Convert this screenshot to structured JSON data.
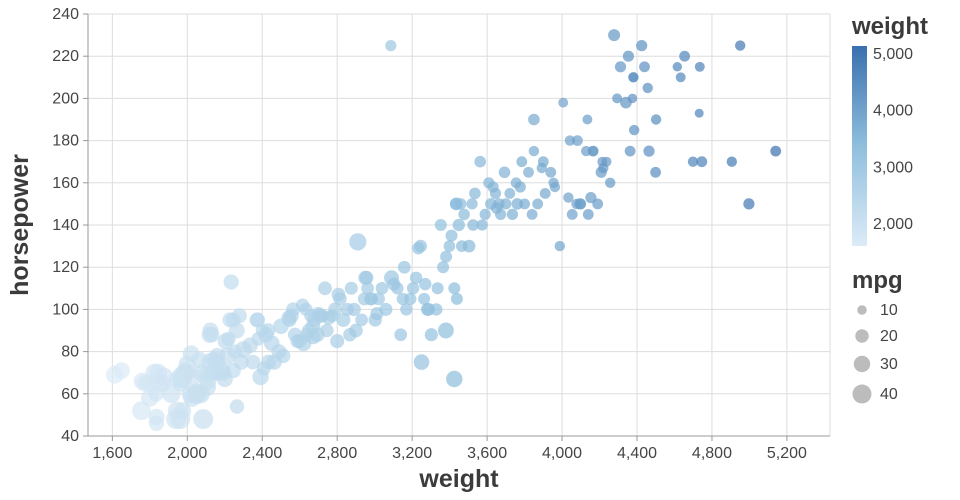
{
  "chart_data": {
    "type": "scatter",
    "title": "",
    "xlabel": "weight",
    "ylabel": "horsepower",
    "x_domain": [
      1470,
      5430
    ],
    "y_domain": [
      40,
      240
    ],
    "x_ticks": [
      1600,
      2000,
      2400,
      2800,
      3200,
      3600,
      4000,
      4400,
      4800,
      5200
    ],
    "x_tick_labels": [
      "1,600",
      "2,000",
      "2,400",
      "2,800",
      "3,200",
      "3,600",
      "4,000",
      "4,400",
      "4,800",
      "5,200"
    ],
    "y_ticks": [
      40,
      60,
      80,
      100,
      120,
      140,
      160,
      180,
      200,
      220,
      240
    ],
    "y_tick_labels": [
      "40",
      "60",
      "80",
      "100",
      "120",
      "140",
      "160",
      "180",
      "200",
      "220",
      "240"
    ],
    "grid": true,
    "legend_position": "right",
    "color_scale": {
      "field": "weight",
      "domain": [
        1613,
        5140
      ],
      "range": [
        "#dcebf7",
        "#8fbfdd",
        "#3a70ae"
      ]
    },
    "size_scale": {
      "field": "mpg",
      "factor": 1.5
    },
    "legend": {
      "weight": {
        "title": "weight",
        "entries": [
          {
            "value": 5000,
            "label": "5,000"
          },
          {
            "value": 4000,
            "label": "4,000"
          },
          {
            "value": 3000,
            "label": "3,000"
          },
          {
            "value": 2000,
            "label": "2,000"
          }
        ]
      },
      "mpg": {
        "title": "mpg",
        "entries": [
          {
            "value": 10,
            "label": "10"
          },
          {
            "value": 20,
            "label": "20"
          },
          {
            "value": 30,
            "label": "30"
          },
          {
            "value": 40,
            "label": "40"
          }
        ]
      }
    },
    "points": [
      [
        1613,
        69,
        35
      ],
      [
        1649,
        71,
        31
      ],
      [
        1755,
        52,
        39
      ],
      [
        1760,
        66,
        32
      ],
      [
        1773,
        65,
        31
      ],
      [
        1795,
        65,
        33
      ],
      [
        1800,
        58,
        34
      ],
      [
        1825,
        70,
        36
      ],
      [
        1834,
        60,
        27
      ],
      [
        1835,
        46,
        26
      ],
      [
        1836,
        49,
        29
      ],
      [
        1845,
        70,
        35
      ],
      [
        1850,
        65,
        38
      ],
      [
        1867,
        65,
        33
      ],
      [
        1875,
        68,
        38
      ],
      [
        1915,
        60,
        38
      ],
      [
        1940,
        48,
        44
      ],
      [
        1945,
        52,
        37
      ],
      [
        1950,
        67,
        34
      ],
      [
        1963,
        48,
        43
      ],
      [
        1965,
        65,
        32
      ],
      [
        1968,
        69,
        31
      ],
      [
        1970,
        67,
        37
      ],
      [
        1975,
        52,
        32
      ],
      [
        1975,
        67,
        39
      ],
      [
        1985,
        70,
        34
      ],
      [
        1990,
        71,
        32
      ],
      [
        1995,
        70,
        34
      ],
      [
        2000,
        74,
        33
      ],
      [
        2019,
        60,
        38
      ],
      [
        2020,
        79,
        31
      ],
      [
        2025,
        58,
        35
      ],
      [
        2035,
        68,
        31
      ],
      [
        2045,
        60,
        36
      ],
      [
        2050,
        60,
        46
      ],
      [
        2065,
        76,
        30
      ],
      [
        2070,
        60,
        41
      ],
      [
        2074,
        70,
        30
      ],
      [
        2085,
        48,
        44
      ],
      [
        2108,
        63,
        32
      ],
      [
        2110,
        70,
        26
      ],
      [
        2110,
        66,
        32
      ],
      [
        2120,
        88,
        30
      ],
      [
        2123,
        90,
        28
      ],
      [
        2125,
        75,
        37
      ],
      [
        2130,
        88,
        27
      ],
      [
        2135,
        70,
        32
      ],
      [
        2144,
        76,
        31
      ],
      [
        2155,
        75,
        34
      ],
      [
        2160,
        78,
        28
      ],
      [
        2164,
        70,
        28
      ],
      [
        2188,
        71,
        27
      ],
      [
        2190,
        70,
        31
      ],
      [
        2200,
        67,
        29
      ],
      [
        2205,
        85,
        29
      ],
      [
        2215,
        78,
        33
      ],
      [
        2220,
        86,
        23
      ],
      [
        2228,
        95,
        25
      ],
      [
        2234,
        113,
        26
      ],
      [
        2245,
        95,
        24
      ],
      [
        2245,
        71,
        26
      ],
      [
        2254,
        80,
        23
      ],
      [
        2264,
        90,
        28
      ],
      [
        2265,
        54,
        23
      ],
      [
        2278,
        97,
        25
      ],
      [
        2288,
        75,
        26
      ],
      [
        2300,
        81,
        31
      ],
      [
        2335,
        83,
        27
      ],
      [
        2350,
        75,
        24
      ],
      [
        2372,
        95,
        24
      ],
      [
        2375,
        95,
        25
      ],
      [
        2379,
        86,
        21
      ],
      [
        2391,
        68,
        30
      ],
      [
        2401,
        90,
        20
      ],
      [
        2408,
        72,
        22
      ],
      [
        2420,
        88,
        26
      ],
      [
        2430,
        90,
        24
      ],
      [
        2434,
        75,
        25
      ],
      [
        2451,
        84,
        27
      ],
      [
        2464,
        75,
        26
      ],
      [
        2489,
        80,
        25
      ],
      [
        2500,
        92,
        27
      ],
      [
        2511,
        78,
        24
      ],
      [
        2542,
        96,
        25
      ],
      [
        2545,
        95,
        23
      ],
      [
        2556,
        97,
        24
      ],
      [
        2565,
        100,
        22
      ],
      [
        2575,
        88,
        22
      ],
      [
        2587,
        85,
        21
      ],
      [
        2600,
        85,
        23
      ],
      [
        2615,
        102,
        20
      ],
      [
        2620,
        84,
        28
      ],
      [
        2634,
        100,
        19
      ],
      [
        2639,
        88,
        21
      ],
      [
        2648,
        90,
        21
      ],
      [
        2660,
        97,
        20
      ],
      [
        2671,
        92,
        25
      ],
      [
        2672,
        87,
        25
      ],
      [
        2678,
        95,
        22
      ],
      [
        2694,
        88,
        24
      ],
      [
        2700,
        98,
        20
      ],
      [
        2711,
        97,
        23
      ],
      [
        2720,
        97,
        20
      ],
      [
        2735,
        110,
        21
      ],
      [
        2745,
        90,
        20
      ],
      [
        2755,
        96,
        22
      ],
      [
        2774,
        97,
        18
      ],
      [
        2789,
        100,
        21
      ],
      [
        2800,
        85,
        22
      ],
      [
        2807,
        107,
        21
      ],
      [
        2815,
        105,
        20
      ],
      [
        2833,
        95,
        22
      ],
      [
        2855,
        100,
        19
      ],
      [
        2868,
        88,
        20
      ],
      [
        2875,
        110,
        19
      ],
      [
        2890,
        100,
        20
      ],
      [
        2900,
        90,
        21
      ],
      [
        2910,
        132,
        33
      ],
      [
        2930,
        95,
        18
      ],
      [
        2945,
        105,
        19
      ],
      [
        2950,
        115,
        22
      ],
      [
        2957,
        115,
        21
      ],
      [
        2962,
        110,
        18
      ],
      [
        2979,
        105,
        19
      ],
      [
        2984,
        105,
        18
      ],
      [
        3003,
        95,
        20
      ],
      [
        3012,
        98,
        19
      ],
      [
        3021,
        105,
        18
      ],
      [
        3039,
        110,
        18
      ],
      [
        3060,
        100,
        19
      ],
      [
        3086,
        225,
        14
      ],
      [
        3090,
        115,
        25
      ],
      [
        3102,
        112,
        19
      ],
      [
        3121,
        110,
        17
      ],
      [
        3139,
        88,
        18
      ],
      [
        3150,
        105,
        17
      ],
      [
        3158,
        120,
        18
      ],
      [
        3169,
        100,
        17
      ],
      [
        3190,
        105,
        17
      ],
      [
        3205,
        110,
        17
      ],
      [
        3221,
        115,
        17
      ],
      [
        3233,
        129,
        17
      ],
      [
        3245,
        130,
        18
      ],
      [
        3250,
        75,
        27
      ],
      [
        3264,
        105,
        16
      ],
      [
        3270,
        112,
        17
      ],
      [
        3282,
        100,
        19
      ],
      [
        3288,
        100,
        18
      ],
      [
        3302,
        88,
        19
      ],
      [
        3329,
        100,
        17
      ],
      [
        3336,
        110,
        16
      ],
      [
        3353,
        140,
        16
      ],
      [
        3365,
        120,
        16
      ],
      [
        3380,
        90,
        28
      ],
      [
        3381,
        125,
        16
      ],
      [
        3399,
        130,
        15
      ],
      [
        3410,
        135,
        16
      ],
      [
        3425,
        67,
        30
      ],
      [
        3425,
        110,
        16
      ],
      [
        3433,
        150,
        16
      ],
      [
        3436,
        150,
        18
      ],
      [
        3439,
        105,
        16
      ],
      [
        3449,
        140,
        17
      ],
      [
        3459,
        150,
        15
      ],
      [
        3465,
        130,
        15
      ],
      [
        3477,
        145,
        15
      ],
      [
        3504,
        130,
        18
      ],
      [
        3520,
        150,
        14
      ],
      [
        3525,
        140,
        15
      ],
      [
        3535,
        155,
        15
      ],
      [
        3563,
        170,
        15
      ],
      [
        3574,
        140,
        14
      ],
      [
        3590,
        145,
        14
      ],
      [
        3609,
        160,
        14
      ],
      [
        3620,
        150,
        15
      ],
      [
        3632,
        158,
        14
      ],
      [
        3645,
        155,
        14
      ],
      [
        3651,
        148,
        15
      ],
      [
        3664,
        150,
        14
      ],
      [
        3672,
        145,
        14
      ],
      [
        3693,
        165,
        15
      ],
      [
        3700,
        150,
        14
      ],
      [
        3721,
        155,
        13
      ],
      [
        3735,
        145,
        14
      ],
      [
        3755,
        160,
        13
      ],
      [
        3761,
        150,
        15
      ],
      [
        3777,
        158,
        14
      ],
      [
        3785,
        170,
        13
      ],
      [
        3800,
        150,
        13
      ],
      [
        3821,
        165,
        13
      ],
      [
        3840,
        145,
        13
      ],
      [
        3850,
        190,
        15
      ],
      [
        3850,
        175,
        12
      ],
      [
        3870,
        150,
        13
      ],
      [
        3892,
        167,
        12
      ],
      [
        3900,
        170,
        13
      ],
      [
        3910,
        155,
        13
      ],
      [
        3940,
        165,
        13
      ],
      [
        3955,
        160,
        12
      ],
      [
        3962,
        158,
        12
      ],
      [
        3988,
        130,
        12
      ],
      [
        4006,
        198,
        11
      ],
      [
        4034,
        153,
        12
      ],
      [
        4042,
        180,
        12
      ],
      [
        4054,
        145,
        13
      ],
      [
        4077,
        150,
        12
      ],
      [
        4082,
        180,
        13
      ],
      [
        4096,
        150,
        14
      ],
      [
        4100,
        150,
        13
      ],
      [
        4129,
        175,
        12
      ],
      [
        4135,
        190,
        11
      ],
      [
        4140,
        145,
        13
      ],
      [
        4154,
        153,
        14
      ],
      [
        4165,
        175,
        12
      ],
      [
        4166,
        175,
        13
      ],
      [
        4190,
        150,
        13
      ],
      [
        4209,
        165,
        14
      ],
      [
        4215,
        170,
        11
      ],
      [
        4220,
        167,
        12
      ],
      [
        4237,
        170,
        11
      ],
      [
        4257,
        160,
        12
      ],
      [
        4278,
        230,
        16
      ],
      [
        4294,
        200,
        11
      ],
      [
        4312,
        215,
        14
      ],
      [
        4341,
        198,
        15
      ],
      [
        4354,
        220,
        14
      ],
      [
        4363,
        175,
        13
      ],
      [
        4376,
        200,
        10
      ],
      [
        4380,
        210,
        12
      ],
      [
        4382,
        210,
        11
      ],
      [
        4385,
        185,
        12
      ],
      [
        4425,
        225,
        14
      ],
      [
        4440,
        215,
        13
      ],
      [
        4457,
        205,
        12
      ],
      [
        4464,
        175,
        14
      ],
      [
        4499,
        165,
        13
      ],
      [
        4502,
        190,
        12
      ],
      [
        4615,
        215,
        10
      ],
      [
        4633,
        210,
        11
      ],
      [
        4654,
        220,
        13
      ],
      [
        4699,
        170,
        12
      ],
      [
        4732,
        193,
        9
      ],
      [
        4735,
        215,
        11
      ],
      [
        4746,
        170,
        13
      ],
      [
        4906,
        170,
        12
      ],
      [
        4951,
        225,
        12
      ],
      [
        4997,
        150,
        14
      ],
      [
        5140,
        175,
        13
      ]
    ]
  }
}
